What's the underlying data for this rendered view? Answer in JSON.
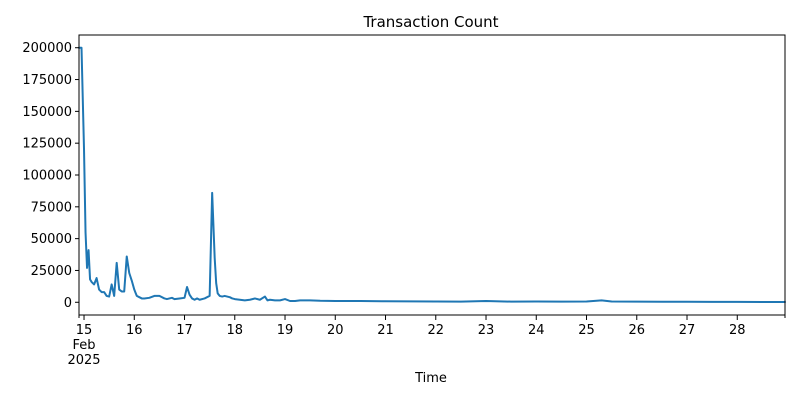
{
  "chart_data": {
    "type": "line",
    "title": "Transaction Count",
    "xlabel": "Time",
    "ylabel": "",
    "color": "#1f77b4",
    "x_start_day": 14.9,
    "x_end_day": 28.95,
    "ylim": [
      -10000,
      210000
    ],
    "yticks": [
      0,
      25000,
      50000,
      75000,
      100000,
      125000,
      150000,
      175000,
      200000
    ],
    "ytick_labels": [
      "0",
      "25000",
      "50000",
      "75000",
      "100000",
      "125000",
      "150000",
      "175000",
      "200000"
    ],
    "xticks": [
      15,
      16,
      17,
      18,
      19,
      20,
      21,
      22,
      23,
      24,
      25,
      26,
      27,
      28
    ],
    "xtick_labels": [
      "15",
      "16",
      "17",
      "18",
      "19",
      "20",
      "21",
      "22",
      "23",
      "24",
      "25",
      "26",
      "27",
      "28"
    ],
    "x_minor_ticks": [
      14.9,
      28.95
    ],
    "x_sublabels": [
      "Feb",
      "2025"
    ],
    "x": [
      14.9,
      14.95,
      15.0,
      15.03,
      15.06,
      15.09,
      15.12,
      15.15,
      15.2,
      15.25,
      15.3,
      15.35,
      15.4,
      15.45,
      15.5,
      15.55,
      15.6,
      15.65,
      15.7,
      15.75,
      15.8,
      15.85,
      15.9,
      15.95,
      16.0,
      16.02,
      16.05,
      16.1,
      16.15,
      16.2,
      16.3,
      16.4,
      16.5,
      16.6,
      16.65,
      16.7,
      16.75,
      16.8,
      16.9,
      17.0,
      17.05,
      17.1,
      17.15,
      17.2,
      17.25,
      17.3,
      17.4,
      17.5,
      17.55,
      17.6,
      17.63,
      17.66,
      17.7,
      17.75,
      17.8,
      17.85,
      17.9,
      17.95,
      18.0,
      18.1,
      18.2,
      18.3,
      18.4,
      18.5,
      18.6,
      18.65,
      18.7,
      18.8,
      18.9,
      19.0,
      19.1,
      19.2,
      19.3,
      19.5,
      19.7,
      20.0,
      20.2,
      20.5,
      21.0,
      21.5,
      22.0,
      22.5,
      23.0,
      23.5,
      24.0,
      24.5,
      25.0,
      25.3,
      25.5,
      26.0,
      26.5,
      27.0,
      27.5,
      28.0,
      28.5,
      28.95
    ],
    "values": [
      200000,
      200000,
      120000,
      55000,
      27000,
      41000,
      18000,
      16000,
      14000,
      19000,
      10000,
      8000,
      8000,
      5000,
      4500,
      14000,
      5000,
      31000,
      10000,
      8500,
      8500,
      36000,
      23000,
      17000,
      10000,
      8000,
      5000,
      4000,
      3000,
      3000,
      3500,
      5000,
      5000,
      3000,
      2500,
      3000,
      3500,
      2500,
      3000,
      3500,
      12000,
      6000,
      3000,
      2000,
      3000,
      2000,
      3000,
      5000,
      86000,
      35000,
      15000,
      7000,
      5000,
      4500,
      5000,
      4500,
      4000,
      3000,
      2500,
      2000,
      1500,
      2000,
      3000,
      2000,
      4500,
      1500,
      2000,
      1500,
      1500,
      2500,
      1000,
      1000,
      1500,
      1500,
      1200,
      1000,
      1000,
      1000,
      800,
      700,
      600,
      500,
      1000,
      500,
      600,
      500,
      600,
      1500,
      600,
      500,
      400,
      400,
      300,
      300,
      200,
      200
    ]
  }
}
